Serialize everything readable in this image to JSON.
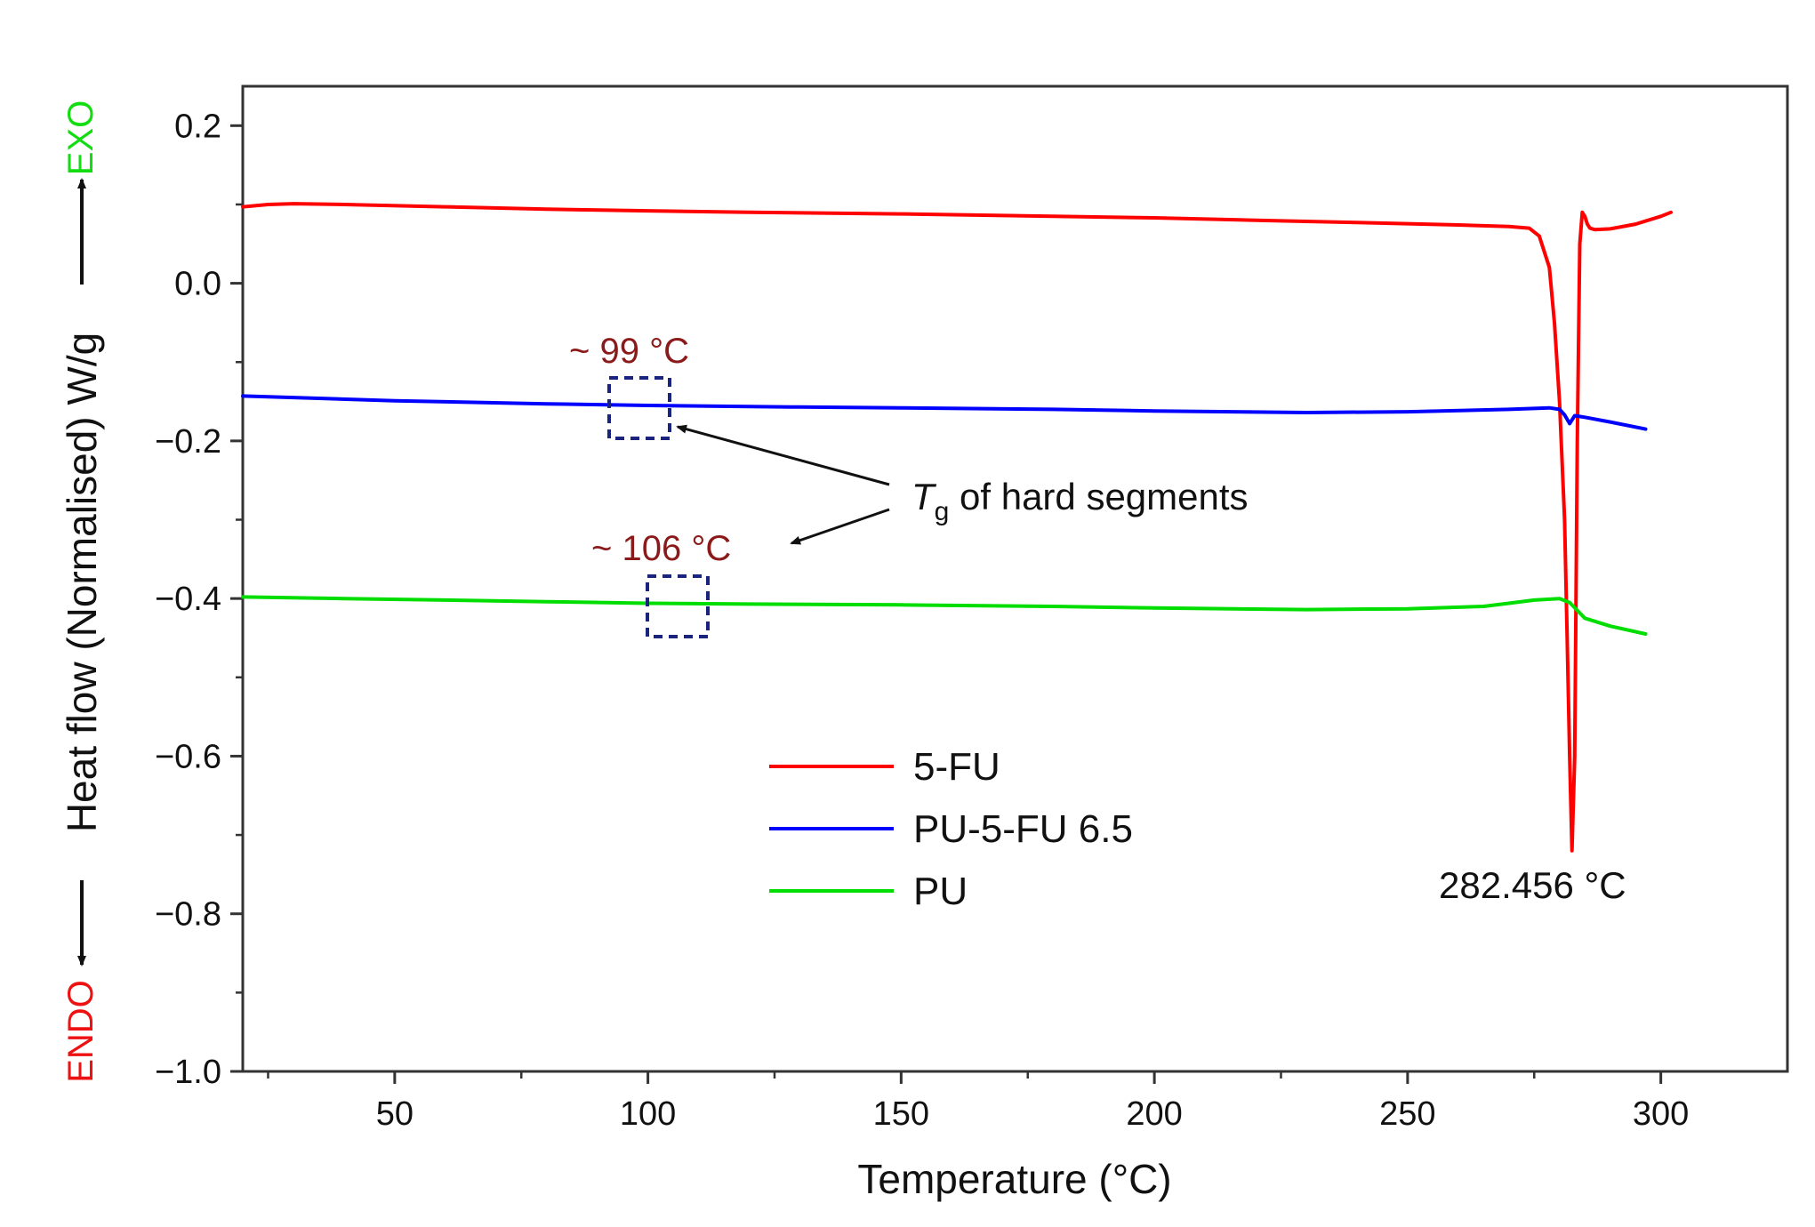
{
  "chart_data": {
    "type": "line",
    "title": "",
    "xlabel": "Temperature (°C)",
    "ylabel": "Heat flow (Normalised) W/g",
    "ylabel_exo": "EXO",
    "ylabel_endo": "ENDO",
    "xlim": [
      20,
      325
    ],
    "ylim": [
      -1.0,
      0.25
    ],
    "x_ticks": [
      50,
      100,
      150,
      200,
      250,
      300
    ],
    "x_tick_labels": [
      "50",
      "100",
      "150",
      "200",
      "250",
      "300"
    ],
    "y_ticks": [
      0.2,
      0.0,
      -0.2,
      -0.4,
      -0.6,
      -0.8,
      -1.0
    ],
    "y_tick_labels": [
      "0.2",
      "0.0",
      "−0.2",
      "−0.4",
      "−0.6",
      "−0.8",
      "−1.0"
    ],
    "grid": false,
    "legend_position": "center",
    "series": [
      {
        "name": "5-FU",
        "color": "#ff0000",
        "x": [
          20,
          25,
          30,
          40,
          60,
          80,
          100,
          120,
          150,
          180,
          200,
          220,
          240,
          260,
          270,
          274,
          276,
          278,
          279,
          280,
          281,
          281.5,
          282,
          282.456,
          283,
          283.5,
          284,
          284.5,
          285,
          285.5,
          286,
          287,
          290,
          295,
          300,
          302
        ],
        "y": [
          0.097,
          0.1,
          0.101,
          0.1,
          0.097,
          0.094,
          0.092,
          0.09,
          0.088,
          0.085,
          0.083,
          0.08,
          0.077,
          0.074,
          0.072,
          0.07,
          0.06,
          0.02,
          -0.05,
          -0.15,
          -0.3,
          -0.45,
          -0.6,
          -0.72,
          -0.6,
          -0.2,
          0.05,
          0.09,
          0.085,
          0.075,
          0.07,
          0.068,
          0.069,
          0.075,
          0.085,
          0.09
        ]
      },
      {
        "name": "PU-5-FU 6.5",
        "color": "#0000ff",
        "x": [
          20,
          30,
          50,
          80,
          100,
          130,
          150,
          180,
          200,
          230,
          250,
          270,
          278,
          280,
          281,
          282,
          283,
          285,
          290,
          297
        ],
        "y": [
          -0.143,
          -0.145,
          -0.149,
          -0.153,
          -0.155,
          -0.157,
          -0.158,
          -0.16,
          -0.162,
          -0.164,
          -0.163,
          -0.16,
          -0.158,
          -0.16,
          -0.167,
          -0.178,
          -0.168,
          -0.17,
          -0.176,
          -0.185
        ]
      },
      {
        "name": "PU",
        "color": "#00dd00",
        "x": [
          20,
          40,
          60,
          80,
          100,
          120,
          150,
          180,
          200,
          230,
          250,
          265,
          270,
          275,
          280,
          282,
          285,
          290,
          297
        ],
        "y": [
          -0.398,
          -0.4,
          -0.402,
          -0.404,
          -0.406,
          -0.407,
          -0.408,
          -0.41,
          -0.412,
          -0.414,
          -0.413,
          -0.41,
          -0.406,
          -0.402,
          -0.4,
          -0.405,
          -0.425,
          -0.435,
          -0.445
        ]
      }
    ],
    "annotations": {
      "tg_label_prefix": "T",
      "tg_label_sub": "g",
      "tg_label_suffix": " of hard segments",
      "tg_pu5fu": "~ 99 °C",
      "tg_pu": "~ 106 °C",
      "peak_label": "282.456 °C"
    }
  }
}
